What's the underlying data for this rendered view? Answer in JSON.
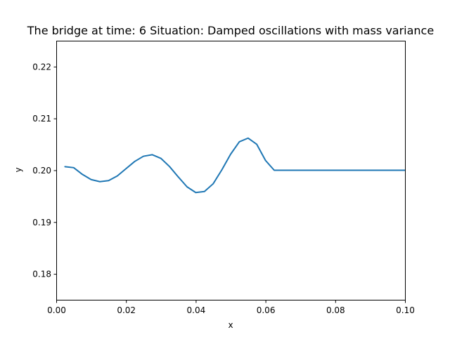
{
  "chart_data": {
    "type": "line",
    "title": "The bridge at time: 6 Situation: Damped oscillations with mass variance",
    "xlabel": "x",
    "ylabel": "y",
    "xlim": [
      0.0,
      0.1
    ],
    "ylim": [
      0.175,
      0.225
    ],
    "xticks": [
      0.0,
      0.02,
      0.04,
      0.06,
      0.08,
      0.1
    ],
    "xtick_labels": [
      "0.00",
      "0.02",
      "0.04",
      "0.06",
      "0.08",
      "0.10"
    ],
    "yticks": [
      0.18,
      0.19,
      0.2,
      0.21,
      0.22
    ],
    "ytick_labels": [
      "0.18",
      "0.19",
      "0.20",
      "0.21",
      "0.22"
    ],
    "grid": false,
    "color": "#1f77b4",
    "series": [
      {
        "x": [
          0.0025,
          0.005,
          0.0075,
          0.01,
          0.0125,
          0.015,
          0.0175,
          0.02,
          0.0225,
          0.025,
          0.0275,
          0.03,
          0.0325,
          0.035,
          0.0375,
          0.04,
          0.0425,
          0.045,
          0.0475,
          0.05,
          0.0525,
          0.055,
          0.0575,
          0.06,
          0.0625,
          0.065,
          0.0675,
          0.07,
          0.0725,
          0.075,
          0.0775,
          0.08,
          0.0825,
          0.085,
          0.0875,
          0.09,
          0.0925,
          0.095,
          0.0975,
          0.1
        ],
        "y": [
          0.2007,
          0.2005,
          0.1992,
          0.1982,
          0.1978,
          0.198,
          0.1989,
          0.2003,
          0.2017,
          0.2027,
          0.203,
          0.2023,
          0.2007,
          0.1987,
          0.1968,
          0.1957,
          0.1959,
          0.1974,
          0.2001,
          0.2031,
          0.2055,
          0.2062,
          0.205,
          0.2019,
          0.2,
          0.2,
          0.2,
          0.2,
          0.2,
          0.2,
          0.2,
          0.2,
          0.2,
          0.2,
          0.2,
          0.2,
          0.2,
          0.2,
          0.2,
          0.2
        ]
      }
    ]
  }
}
